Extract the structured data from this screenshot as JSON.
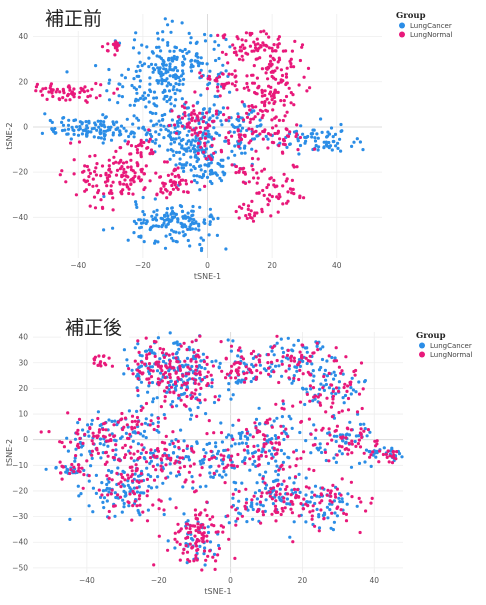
{
  "chart_data": [
    {
      "type": "scatter",
      "title": "補正前",
      "xlabel": "tSNE-1",
      "ylabel": "tSNE-2",
      "xlim": [
        -54,
        54
      ],
      "ylim": [
        -58,
        50
      ],
      "xticks": [
        -40,
        -20,
        0,
        20,
        40
      ],
      "yticks": [
        -40,
        -20,
        0,
        20,
        40
      ],
      "grid": true,
      "legend": {
        "title": "Group",
        "position": "top-right",
        "entries": [
          "LungCancer",
          "LungNormal"
        ]
      },
      "series": [
        {
          "name": "LungCancer",
          "color": "#2b8de6",
          "clusters": [
            [
              -12,
              20,
              9,
              12,
              240
            ],
            [
              -8,
              27,
              6,
              5,
              60
            ],
            [
              -35,
              -1,
              8,
              2.5,
              120
            ],
            [
              -12,
              -2,
              4,
              4,
              40
            ],
            [
              -3,
              -8,
              5,
              8,
              120
            ],
            [
              0,
              -18,
              4,
              4,
              40
            ],
            [
              12,
              -2,
              4,
              7,
              50
            ],
            [
              35,
              -6,
              7,
              3,
              70
            ],
            [
              -10,
              -44,
              7,
              5,
              130
            ],
            [
              -12,
              -40,
              5,
              3,
              30
            ],
            [
              2,
              4,
              2,
              2,
              10
            ]
          ]
        },
        {
          "name": "LungNormal",
          "color": "#e8197a",
          "clusters": [
            [
              -43,
              15,
              7,
              2,
              70
            ],
            [
              -29,
              36,
              1.5,
              2,
              15
            ],
            [
              12,
              37,
              5,
              4,
              40
            ],
            [
              20,
              33,
              4,
              4,
              40
            ],
            [
              -28,
              -23,
              7,
              6,
              100
            ],
            [
              -4,
              4,
              4,
              3,
              40
            ],
            [
              -12,
              -25,
              4,
              4,
              50
            ],
            [
              18,
              8,
              4,
              8,
              80
            ],
            [
              4,
              20,
              4,
              3,
              30
            ],
            [
              -21,
              -10,
              3,
              3,
              30
            ],
            [
              -25,
              -22,
              4,
              4,
              30
            ],
            [
              11,
              -5,
              3,
              3,
              20
            ],
            [
              -2,
              -1,
              2,
              2,
              15
            ],
            [
              21,
              -27,
              4,
              5,
              45
            ],
            [
              23,
              -6,
              4,
              4,
              30
            ],
            [
              12,
              -20,
              3,
              3,
              25
            ],
            [
              0,
              -10,
              2,
              3,
              15
            ],
            [
              21,
              21,
              5,
              5,
              60
            ],
            [
              13,
              -38,
              2,
              2,
              20
            ]
          ]
        }
      ]
    },
    {
      "type": "scatter",
      "title": "補正後",
      "xlabel": "tSNE-1",
      "ylabel": "tSNE-2",
      "xlim": [
        -55,
        48
      ],
      "ylim": [
        -52,
        42
      ],
      "xticks": [
        -40,
        -20,
        0,
        20,
        40
      ],
      "yticks": [
        -50,
        -40,
        -30,
        -20,
        -10,
        0,
        10,
        20,
        30,
        40
      ],
      "grid": true,
      "legend": {
        "title": "Group",
        "position": "top-right",
        "entries": [
          "LungCancer",
          "LungNormal"
        ]
      },
      "series": [
        {
          "name": "LungCancer",
          "color": "#2b8de6",
          "clusters": [
            [
              -30,
              -18,
              5,
              6,
              100
            ],
            [
              -14,
              30,
              5,
              5,
              60
            ],
            [
              -22,
              28,
              4,
              6,
              60
            ],
            [
              -12,
              20,
              6,
              6,
              60
            ],
            [
              3,
              28,
              4,
              5,
              40
            ],
            [
              17,
              32,
              6,
              5,
              60
            ],
            [
              28,
              20,
              5,
              5,
              50
            ],
            [
              32,
              0,
              5,
              5,
              50
            ],
            [
              42,
              -6,
              3,
              1.5,
              30
            ],
            [
              12,
              -2,
              4,
              8,
              60
            ],
            [
              -4,
              -8,
              6,
              6,
              60
            ],
            [
              -45,
              -12,
              3,
              1.5,
              20
            ],
            [
              -38,
              0,
              4,
              4,
              40
            ],
            [
              -27,
              5,
              5,
              5,
              40
            ],
            [
              25,
              -25,
              6,
              5,
              50
            ],
            [
              15,
              -22,
              4,
              4,
              40
            ],
            [
              6,
              -26,
              3,
              4,
              30
            ],
            [
              -10,
              -38,
              4,
              5,
              40
            ],
            [
              -18,
              -6,
              4,
              4,
              40
            ],
            [
              2,
              -2,
              4,
              3,
              30
            ]
          ]
        },
        {
          "name": "LungNormal",
          "color": "#e8197a",
          "clusters": [
            [
              -10,
              -38,
              4,
              6,
              100
            ],
            [
              -28,
              -18,
              6,
              6,
              80
            ],
            [
              -38,
              0,
              5,
              4,
              60
            ],
            [
              -14,
              30,
              5,
              5,
              60
            ],
            [
              -22,
              28,
              4,
              6,
              50
            ],
            [
              -12,
              20,
              5,
              5,
              50
            ],
            [
              3,
              28,
              4,
              5,
              40
            ],
            [
              17,
              32,
              6,
              5,
              60
            ],
            [
              28,
              20,
              5,
              5,
              50
            ],
            [
              32,
              0,
              5,
              5,
              50
            ],
            [
              42,
              -6,
              3,
              1.5,
              20
            ],
            [
              12,
              -2,
              4,
              8,
              60
            ],
            [
              -4,
              -8,
              6,
              6,
              50
            ],
            [
              -45,
              -12,
              3,
              1.5,
              20
            ],
            [
              -27,
              5,
              5,
              5,
              40
            ],
            [
              25,
              -25,
              6,
              5,
              60
            ],
            [
              15,
              -22,
              4,
              4,
              40
            ],
            [
              -35,
              31,
              2,
              1.5,
              15
            ],
            [
              -18,
              -6,
              4,
              4,
              30
            ],
            [
              6,
              -26,
              3,
              4,
              20
            ]
          ]
        }
      ]
    }
  ]
}
